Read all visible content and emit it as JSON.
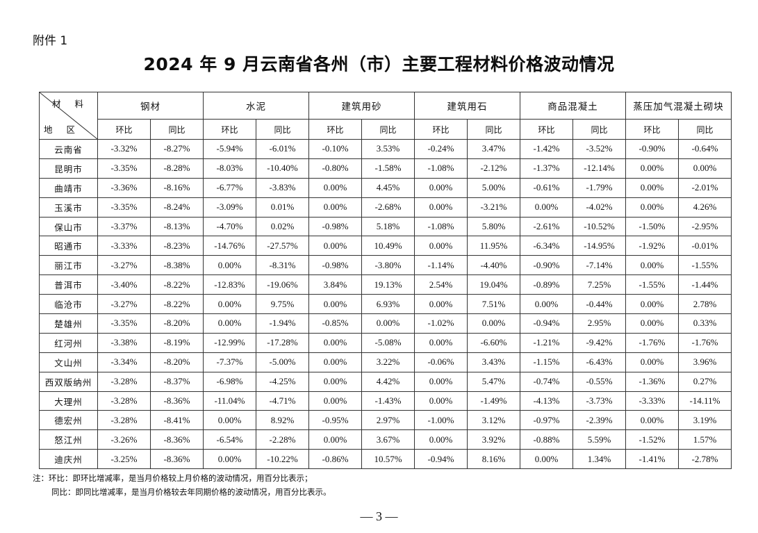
{
  "attachment_label": "附件 1",
  "title": "2024 年 9 月云南省各州（市）主要工程材料价格波动情况",
  "corner": {
    "top_label": "材 料",
    "bottom_label": "地 区"
  },
  "materials": [
    "钢材",
    "水泥",
    "建筑用砂",
    "建筑用石",
    "商品混凝土",
    "蒸压加气混凝土砌块"
  ],
  "sub_headers": {
    "mom": "环比",
    "yoy": "同比"
  },
  "rows": [
    {
      "region": "云南省",
      "values": [
        "-3.32%",
        "-8.27%",
        "-5.94%",
        "-6.01%",
        "-0.10%",
        "3.53%",
        "-0.24%",
        "3.47%",
        "-1.42%",
        "-3.52%",
        "-0.90%",
        "-0.64%"
      ]
    },
    {
      "region": "昆明市",
      "values": [
        "-3.35%",
        "-8.28%",
        "-8.03%",
        "-10.40%",
        "-0.80%",
        "-1.58%",
        "-1.08%",
        "-2.12%",
        "-1.37%",
        "-12.14%",
        "0.00%",
        "0.00%"
      ]
    },
    {
      "region": "曲靖市",
      "values": [
        "-3.36%",
        "-8.16%",
        "-6.77%",
        "-3.83%",
        "0.00%",
        "4.45%",
        "0.00%",
        "5.00%",
        "-0.61%",
        "-1.79%",
        "0.00%",
        "-2.01%"
      ]
    },
    {
      "region": "玉溪市",
      "values": [
        "-3.35%",
        "-8.24%",
        "-3.09%",
        "0.01%",
        "0.00%",
        "-2.68%",
        "0.00%",
        "-3.21%",
        "0.00%",
        "-4.02%",
        "0.00%",
        "4.26%"
      ]
    },
    {
      "region": "保山市",
      "values": [
        "-3.37%",
        "-8.13%",
        "-4.70%",
        "0.02%",
        "-0.98%",
        "5.18%",
        "-1.08%",
        "5.80%",
        "-2.61%",
        "-10.52%",
        "-1.50%",
        "-2.95%"
      ]
    },
    {
      "region": "昭通市",
      "values": [
        "-3.33%",
        "-8.23%",
        "-14.76%",
        "-27.57%",
        "0.00%",
        "10.49%",
        "0.00%",
        "11.95%",
        "-6.34%",
        "-14.95%",
        "-1.92%",
        "-0.01%"
      ]
    },
    {
      "region": "丽江市",
      "values": [
        "-3.27%",
        "-8.38%",
        "0.00%",
        "-8.31%",
        "-0.98%",
        "-3.80%",
        "-1.14%",
        "-4.40%",
        "-0.90%",
        "-7.14%",
        "0.00%",
        "-1.55%"
      ]
    },
    {
      "region": "普洱市",
      "values": [
        "-3.40%",
        "-8.22%",
        "-12.83%",
        "-19.06%",
        "3.84%",
        "19.13%",
        "2.54%",
        "19.04%",
        "-0.89%",
        "7.25%",
        "-1.55%",
        "-1.44%"
      ]
    },
    {
      "region": "临沧市",
      "values": [
        "-3.27%",
        "-8.22%",
        "0.00%",
        "9.75%",
        "0.00%",
        "6.93%",
        "0.00%",
        "7.51%",
        "0.00%",
        "-0.44%",
        "0.00%",
        "2.78%"
      ]
    },
    {
      "region": "楚雄州",
      "values": [
        "-3.35%",
        "-8.20%",
        "0.00%",
        "-1.94%",
        "-0.85%",
        "0.00%",
        "-1.02%",
        "0.00%",
        "-0.94%",
        "2.95%",
        "0.00%",
        "0.33%"
      ]
    },
    {
      "region": "红河州",
      "values": [
        "-3.38%",
        "-8.19%",
        "-12.99%",
        "-17.28%",
        "0.00%",
        "-5.08%",
        "0.00%",
        "-6.60%",
        "-1.21%",
        "-9.42%",
        "-1.76%",
        "-1.76%"
      ]
    },
    {
      "region": "文山州",
      "values": [
        "-3.34%",
        "-8.20%",
        "-7.37%",
        "-5.00%",
        "0.00%",
        "3.22%",
        "-0.06%",
        "3.43%",
        "-1.15%",
        "-6.43%",
        "0.00%",
        "3.96%"
      ]
    },
    {
      "region": "西双版纳州",
      "values": [
        "-3.28%",
        "-8.37%",
        "-6.98%",
        "-4.25%",
        "0.00%",
        "4.42%",
        "0.00%",
        "5.47%",
        "-0.74%",
        "-0.55%",
        "-1.36%",
        "0.27%"
      ]
    },
    {
      "region": "大理州",
      "values": [
        "-3.28%",
        "-8.36%",
        "-11.04%",
        "-4.71%",
        "0.00%",
        "-1.43%",
        "0.00%",
        "-1.49%",
        "-4.13%",
        "-3.73%",
        "-3.33%",
        "-14.11%"
      ]
    },
    {
      "region": "德宏州",
      "values": [
        "-3.28%",
        "-8.41%",
        "0.00%",
        "8.92%",
        "-0.95%",
        "2.97%",
        "-1.00%",
        "3.12%",
        "-0.97%",
        "-2.39%",
        "0.00%",
        "3.19%"
      ]
    },
    {
      "region": "怒江州",
      "values": [
        "-3.26%",
        "-8.36%",
        "-6.54%",
        "-2.28%",
        "0.00%",
        "3.67%",
        "0.00%",
        "3.92%",
        "-0.88%",
        "5.59%",
        "-1.52%",
        "1.57%"
      ]
    },
    {
      "region": "迪庆州",
      "values": [
        "-3.25%",
        "-8.36%",
        "0.00%",
        "-10.22%",
        "-0.86%",
        "10.57%",
        "-0.94%",
        "8.16%",
        "0.00%",
        "1.34%",
        "-1.41%",
        "-2.78%"
      ]
    }
  ],
  "notes": {
    "line1": "注：环比：即环比增减率，是当月价格较上月价格的波动情况，用百分比表示；",
    "line2": "同比：即同比增减率，是当月价格较去年同期价格的波动情况，用百分比表示。"
  },
  "page_number": "— 3 —"
}
